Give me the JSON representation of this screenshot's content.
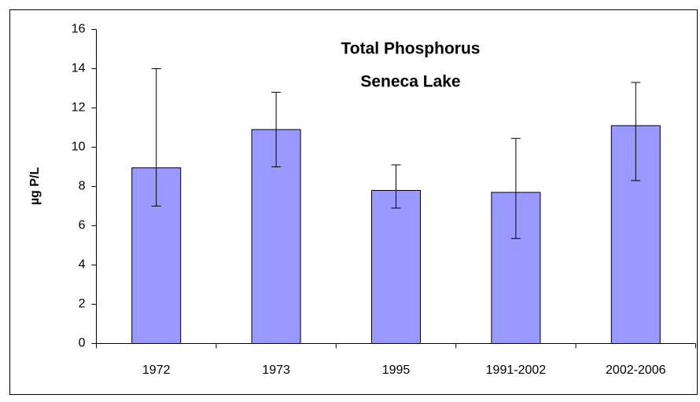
{
  "chart_data": {
    "type": "bar",
    "title": "Total Phosphorus",
    "subtitle": "Seneca Lake",
    "y_label": "µg P/L",
    "categories": [
      "1972",
      "1973",
      "1995",
      "1991-2002",
      "2002-2006"
    ],
    "values": [
      8.95,
      10.9,
      7.8,
      7.7,
      11.1
    ],
    "errors_minus": [
      1.95,
      1.9,
      0.9,
      2.35,
      2.8
    ],
    "errors_plus": [
      5.05,
      1.9,
      1.3,
      2.75,
      2.2
    ],
    "color": "#9999ff",
    "ylim": [
      0,
      16
    ],
    "yticks": [
      0,
      2,
      4,
      6,
      8,
      10,
      12,
      14,
      16
    ],
    "grid": false
  }
}
